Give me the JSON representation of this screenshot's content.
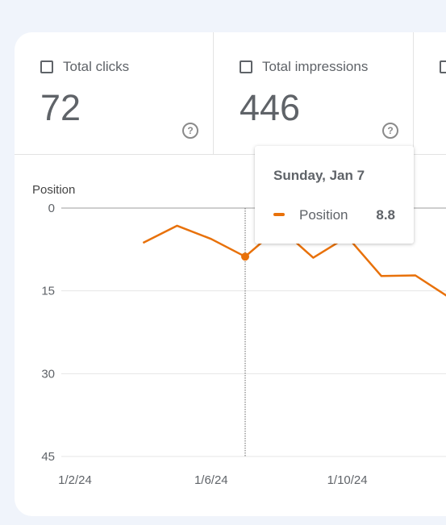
{
  "metrics": [
    {
      "label": "Total clicks",
      "value": "72"
    },
    {
      "label": "Total impressions",
      "value": "446"
    }
  ],
  "tooltip": {
    "date": "Sunday, Jan 7",
    "series_name": "Position",
    "value": "8.8"
  },
  "colors": {
    "series": "#e8710a",
    "grid": "#e6e6e6",
    "axis": "#9e9e9e",
    "text": "#5f6368"
  },
  "chart_data": {
    "type": "line",
    "ylabel": "Position",
    "y_reversed": true,
    "ylim": [
      0,
      45
    ],
    "yticks": [
      0,
      15,
      30,
      45
    ],
    "xtick_labels": [
      "1/2/24",
      "1/6/24",
      "1/10/24"
    ],
    "series": [
      {
        "name": "Position",
        "x": [
          "2024-01-04",
          "2024-01-05",
          "2024-01-06",
          "2024-01-07",
          "2024-01-08",
          "2024-01-09",
          "2024-01-10",
          "2024-01-11",
          "2024-01-12",
          "2024-01-13"
        ],
        "values": [
          6.3,
          3.2,
          5.6,
          8.8,
          3.5,
          9.0,
          5.2,
          12.3,
          12.2,
          16.2
        ]
      }
    ],
    "highlighted": {
      "x": "2024-01-07",
      "value": 8.8
    }
  }
}
